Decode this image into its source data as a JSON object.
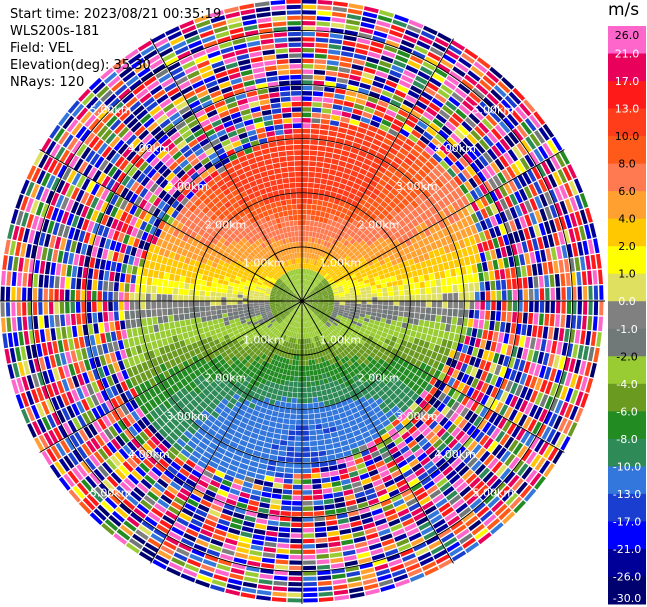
{
  "info": {
    "start_time": "Start time: 2023/08/21 00:35:19",
    "instrument": "WLS200s-181",
    "field": "Field: VEL",
    "elevation": "Elevation(deg): 35.30",
    "nrays": "NRays: 120"
  },
  "colorbar": {
    "unit": "m/s",
    "ticks": [
      "26.0",
      "21.0",
      "17.0",
      "13.0",
      "10.0",
      "8.0",
      "6.0",
      "4.0",
      "2.0",
      "1.0",
      "0.0",
      "-1.0",
      "-2.0",
      "-4.0",
      "-6.0",
      "-8.0",
      "-10.0",
      "-13.0",
      "-17.0",
      "-21.0",
      "-26.0",
      "-30.0"
    ],
    "colors": [
      "#ff66cc",
      "#e8005a",
      "#ff1a1a",
      "#ff3d1a",
      "#ff5a1a",
      "#ff7a50",
      "#ffa030",
      "#ffc800",
      "#ffff00",
      "#e0e060",
      "#808080",
      "#707878",
      "#99cc33",
      "#6a9a20",
      "#228b22",
      "#2e8b57",
      "#3377dd",
      "#1a3fd0",
      "#0000ff",
      "#000099",
      "#00006e"
    ]
  },
  "chart_data": {
    "type": "heatmap",
    "projection": "polar PPI",
    "field": "VEL",
    "units": "m/s",
    "range_rings_km": [
      1.0,
      2.0,
      3.0,
      4.0,
      5.0
    ],
    "range_ring_labels": [
      "1.00km",
      "2.00km",
      "3.00km",
      "4.00km",
      "5.00km"
    ],
    "max_range_km": 5.6,
    "nrays": 120,
    "spokes_deg": [
      0,
      30,
      60,
      90,
      120,
      150,
      180,
      210,
      240,
      270,
      300,
      330
    ],
    "vmin": -30.0,
    "vmax": 26.0,
    "pattern": {
      "inner_ring_km": 0.6,
      "near_field_value": -4.0,
      "north_max": 12.0,
      "south_min": -13.0,
      "noise_start_km": 3.2
    }
  }
}
